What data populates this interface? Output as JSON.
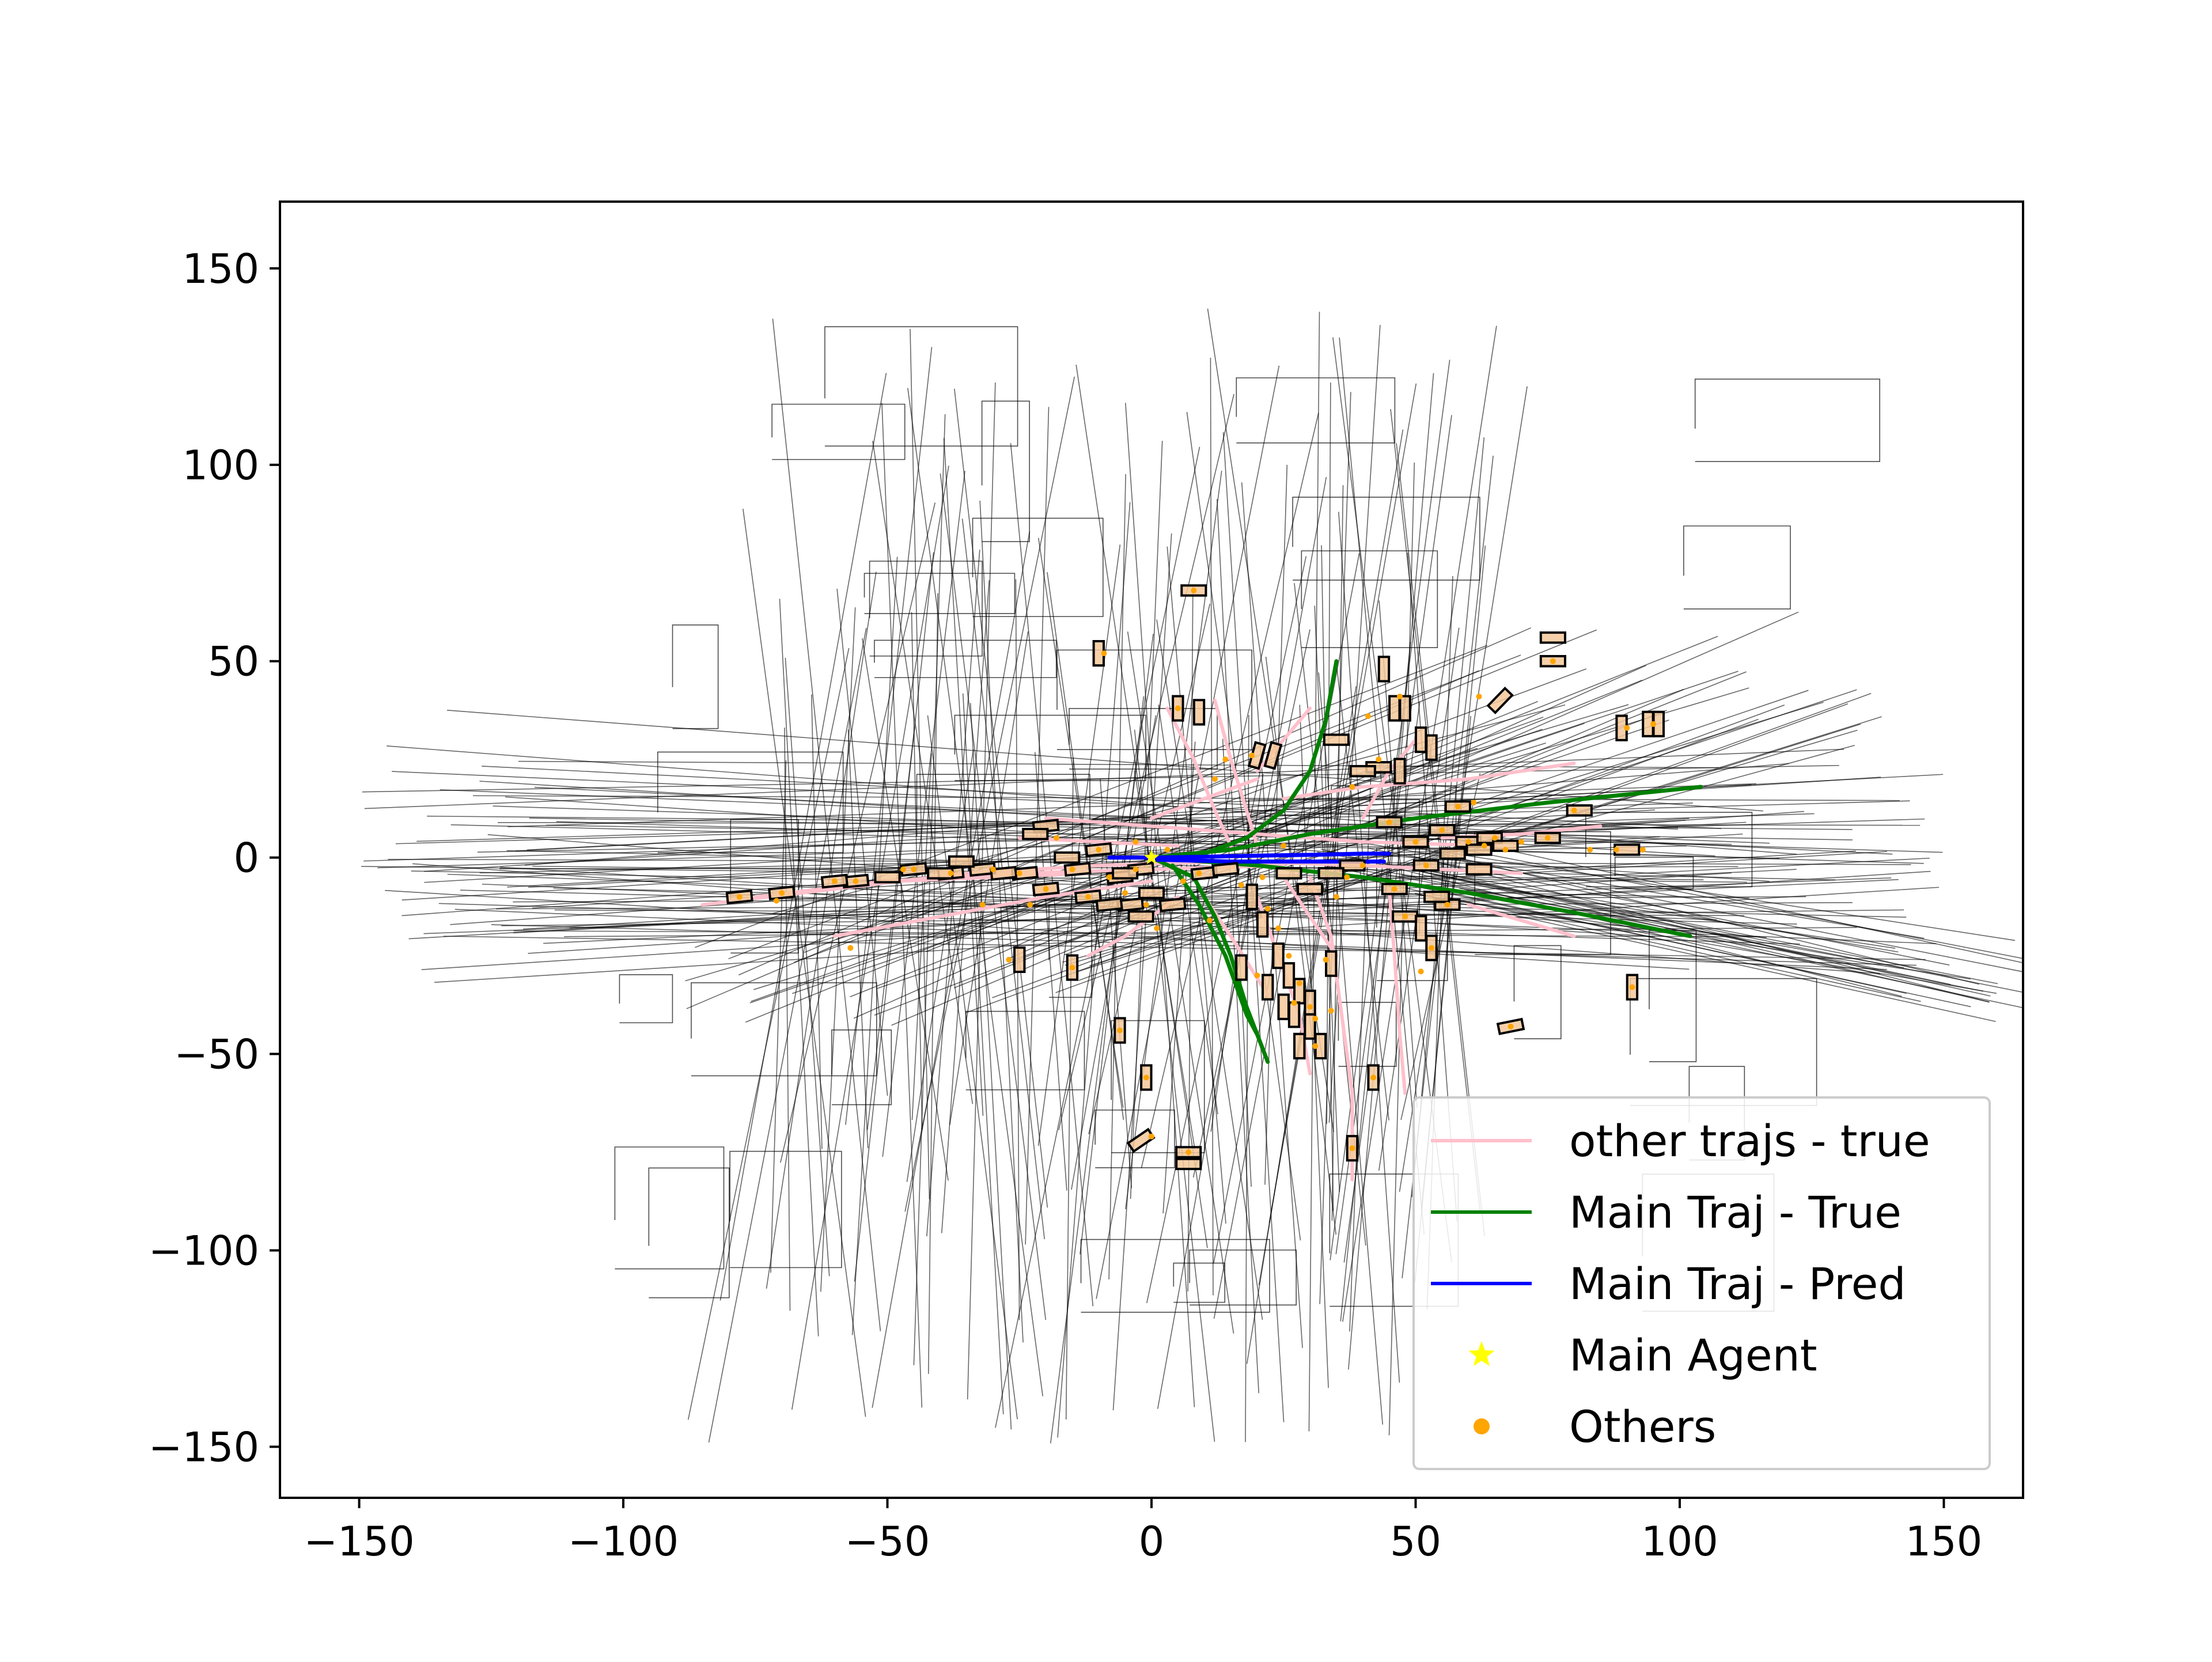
{
  "chart_data": {
    "type": "line",
    "title": "",
    "xlabel": "",
    "ylabel": "",
    "xlim": [
      -165,
      165
    ],
    "ylim": [
      -163,
      167
    ],
    "grid": false,
    "x_ticks": [
      -150,
      -100,
      -50,
      0,
      50,
      100,
      150
    ],
    "y_ticks": [
      -150,
      -100,
      -50,
      0,
      50,
      100,
      150
    ],
    "x_tick_labels": [
      "−150",
      "−100",
      "−50",
      "0",
      "50",
      "100",
      "150"
    ],
    "y_tick_labels": [
      "−150",
      "−100",
      "−50",
      "0",
      "50",
      "100",
      "150"
    ],
    "legend_placement": "lower right",
    "legend": [
      {
        "label": "other trajs - true",
        "color": "#ffc0cb",
        "marker": "line"
      },
      {
        "label": "Main Traj - True",
        "color": "#008000",
        "marker": "line"
      },
      {
        "label": "Main Traj - Pred",
        "color": "#0000ff",
        "marker": "line"
      },
      {
        "label": "Main Agent",
        "color": "#ffff00",
        "marker": "star"
      },
      {
        "label": "Others",
        "color": "#ffa500",
        "marker": "dot"
      }
    ],
    "series": [
      {
        "name": "Main Traj - True",
        "color": "#008000",
        "lines": [
          [
            [
              0,
              0
            ],
            [
              10,
              1
            ],
            [
              18,
              5
            ],
            [
              25,
              12
            ],
            [
              30,
              22
            ],
            [
              33,
              35
            ],
            [
              35,
              50
            ]
          ],
          [
            [
              0,
              0
            ],
            [
              15,
              2
            ],
            [
              30,
              6
            ],
            [
              50,
              10
            ],
            [
              75,
              14
            ],
            [
              104,
              18
            ]
          ],
          [
            [
              0,
              0
            ],
            [
              20,
              -2
            ],
            [
              40,
              -5
            ],
            [
              60,
              -9
            ],
            [
              80,
              -14
            ],
            [
              102,
              -20
            ]
          ],
          [
            [
              0,
              0
            ],
            [
              8,
              -5
            ],
            [
              12,
              -15
            ],
            [
              15,
              -25
            ],
            [
              18,
              -38
            ],
            [
              22,
              -52
            ]
          ],
          [
            [
              4,
              -2
            ],
            [
              9,
              -12
            ],
            [
              14,
              -25
            ],
            [
              18,
              -40
            ],
            [
              20,
              -45
            ]
          ]
        ]
      },
      {
        "name": "Main Traj - Pred",
        "color": "#0000ff",
        "lines": [
          [
            [
              -8,
              0
            ],
            [
              0,
              0
            ],
            [
              10,
              0.2
            ],
            [
              20,
              0.5
            ],
            [
              30,
              0.7
            ],
            [
              40,
              1
            ],
            [
              45,
              1
            ]
          ],
          [
            [
              0,
              -0.5
            ],
            [
              15,
              -1
            ],
            [
              30,
              -1
            ],
            [
              44,
              -1
            ]
          ]
        ]
      },
      {
        "name": "other trajs - true",
        "color": "#ffc0cb",
        "lines": [
          [
            [
              -85,
              -12
            ],
            [
              -60,
              -8
            ],
            [
              -35,
              -4
            ],
            [
              -10,
              -2
            ],
            [
              15,
              -1
            ],
            [
              40,
              -2
            ],
            [
              70,
              -4
            ]
          ],
          [
            [
              -75,
              -10
            ],
            [
              -50,
              -6
            ],
            [
              -25,
              -4
            ],
            [
              0,
              -3
            ],
            [
              25,
              -2
            ]
          ],
          [
            [
              -20,
              10
            ],
            [
              0,
              8
            ],
            [
              20,
              6
            ],
            [
              40,
              4
            ],
            [
              65,
              3
            ]
          ],
          [
            [
              -60,
              -20
            ],
            [
              -40,
              -15
            ],
            [
              -20,
              -10
            ],
            [
              0,
              -6
            ]
          ],
          [
            [
              3,
              38
            ],
            [
              8,
              25
            ],
            [
              12,
              12
            ],
            [
              15,
              3
            ]
          ],
          [
            [
              12,
              40
            ],
            [
              15,
              25
            ],
            [
              18,
              12
            ],
            [
              20,
              3
            ]
          ],
          [
            [
              20,
              -10
            ],
            [
              24,
              -25
            ],
            [
              28,
              -40
            ],
            [
              30,
              -55
            ]
          ],
          [
            [
              30,
              -5
            ],
            [
              34,
              -20
            ],
            [
              36,
              -40
            ],
            [
              38,
              -60
            ],
            [
              38,
              -82
            ]
          ],
          [
            [
              45,
              -8
            ],
            [
              46,
              -25
            ],
            [
              47,
              -45
            ],
            [
              48,
              -60
            ]
          ],
          [
            [
              25,
              15
            ],
            [
              40,
              18
            ],
            [
              60,
              20
            ],
            [
              80,
              24
            ]
          ],
          [
            [
              20,
              22
            ],
            [
              25,
              30
            ],
            [
              30,
              38
            ]
          ],
          [
            [
              -25,
              5
            ],
            [
              -10,
              4
            ],
            [
              5,
              3
            ]
          ],
          [
            [
              0,
              10
            ],
            [
              10,
              15
            ],
            [
              20,
              20
            ]
          ],
          [
            [
              10,
              -10
            ],
            [
              15,
              -20
            ],
            [
              22,
              -35
            ]
          ],
          [
            [
              35,
              -25
            ],
            [
              30,
              -15
            ],
            [
              25,
              -5
            ]
          ],
          [
            [
              55,
              5
            ],
            [
              70,
              6
            ],
            [
              85,
              8
            ]
          ],
          [
            [
              -12,
              -25
            ],
            [
              -5,
              -20
            ],
            [
              0,
              -15
            ],
            [
              5,
              -10
            ]
          ],
          [
            [
              40,
              10
            ],
            [
              45,
              22
            ],
            [
              50,
              30
            ]
          ],
          [
            [
              -48,
              -6
            ],
            [
              -30,
              -5
            ],
            [
              -12,
              -4
            ]
          ],
          [
            [
              60,
              -12
            ],
            [
              70,
              -16
            ],
            [
              80,
              -20
            ]
          ]
        ]
      }
    ],
    "main_agent": {
      "x": 0,
      "y": 0,
      "color": "#ffff00"
    },
    "others": [
      [
        -78,
        -10
      ],
      [
        -70,
        -9
      ],
      [
        -56,
        -6
      ],
      [
        -45,
        -3
      ],
      [
        -38,
        -4
      ],
      [
        -30,
        -3
      ],
      [
        -25,
        -4
      ],
      [
        -20,
        -8
      ],
      [
        -18,
        5
      ],
      [
        -15,
        -3
      ],
      [
        -12,
        -10
      ],
      [
        -10,
        2
      ],
      [
        -8,
        -5
      ],
      [
        -5,
        -9
      ],
      [
        -3,
        -3
      ],
      [
        -1,
        -12
      ],
      [
        -57,
        -23
      ],
      [
        -71,
        -11
      ],
      [
        -15,
        -28
      ],
      [
        -6,
        -44
      ],
      [
        -1,
        -56
      ],
      [
        0,
        -71
      ],
      [
        7,
        -75
      ],
      [
        5,
        38
      ],
      [
        9,
        -4
      ],
      [
        14,
        25
      ],
      [
        19,
        26
      ],
      [
        21,
        -5
      ],
      [
        22,
        -13
      ],
      [
        24,
        -18
      ],
      [
        26,
        -25
      ],
      [
        28,
        -32
      ],
      [
        30,
        -38
      ],
      [
        31,
        -48
      ],
      [
        33,
        -26
      ],
      [
        35,
        -10
      ],
      [
        37,
        -5
      ],
      [
        38,
        18
      ],
      [
        40,
        -2
      ],
      [
        41,
        36
      ],
      [
        43,
        25
      ],
      [
        45,
        9
      ],
      [
        46,
        -8
      ],
      [
        48,
        -15
      ],
      [
        50,
        4
      ],
      [
        52,
        -2
      ],
      [
        53,
        -23
      ],
      [
        55,
        7
      ],
      [
        56,
        -12
      ],
      [
        58,
        13
      ],
      [
        60,
        4
      ],
      [
        61,
        14
      ],
      [
        63,
        3
      ],
      [
        65,
        5
      ],
      [
        67,
        2
      ],
      [
        70,
        4
      ],
      [
        75,
        5
      ],
      [
        80,
        12
      ],
      [
        88,
        2
      ],
      [
        90,
        33
      ],
      [
        95,
        34
      ],
      [
        -9,
        52
      ],
      [
        8,
        68
      ],
      [
        38,
        -74
      ],
      [
        34,
        -39
      ],
      [
        20,
        -30
      ],
      [
        12,
        20
      ],
      [
        25,
        3
      ],
      [
        47,
        41
      ],
      [
        62,
        41
      ],
      [
        76,
        50
      ],
      [
        91,
        -33
      ],
      [
        68,
        -43
      ],
      [
        -47,
        -3
      ],
      [
        -60,
        -6
      ],
      [
        -32,
        -12
      ],
      [
        -27,
        -26
      ],
      [
        -23,
        -12
      ],
      [
        -3,
        4
      ],
      [
        3,
        2
      ],
      [
        17,
        -7
      ],
      [
        27,
        -37
      ],
      [
        31,
        -41
      ],
      [
        42,
        -56
      ],
      [
        51,
        -29
      ],
      [
        83,
        2
      ],
      [
        93,
        2
      ],
      [
        6,
        -6
      ],
      [
        11,
        -16
      ],
      [
        1,
        -18
      ]
    ],
    "vehicles": [
      [
        -78,
        -10,
        0.1
      ],
      [
        -70,
        -9,
        0.1
      ],
      [
        -56,
        -6,
        0.1
      ],
      [
        -45,
        -3,
        0.1
      ],
      [
        -38,
        -4,
        0.1
      ],
      [
        -32,
        -3,
        0.1
      ],
      [
        -24,
        -4,
        0.1
      ],
      [
        -20,
        -8,
        0.1
      ],
      [
        -20,
        8,
        0.1
      ],
      [
        -14,
        -3,
        0.1
      ],
      [
        -12,
        -10,
        0.1
      ],
      [
        -10,
        2,
        0.1
      ],
      [
        -6,
        -5,
        0.1
      ],
      [
        -4,
        -12,
        0.1
      ],
      [
        -2,
        -3,
        0.1
      ],
      [
        -25,
        -26,
        1.57
      ],
      [
        -20,
        -8,
        0.1
      ],
      [
        -15,
        -28,
        1.57
      ],
      [
        -6,
        -44,
        1.57
      ],
      [
        -1,
        -56,
        1.57
      ],
      [
        -2,
        -72,
        0.6
      ],
      [
        7,
        -75,
        0.0
      ],
      [
        7,
        -78,
        0.0
      ],
      [
        5,
        38,
        1.57
      ],
      [
        9,
        37,
        1.57
      ],
      [
        8,
        68,
        0.0
      ],
      [
        -10,
        52,
        1.57
      ],
      [
        20,
        26,
        1.3
      ],
      [
        23,
        26,
        1.3
      ],
      [
        19,
        -10,
        1.57
      ],
      [
        21,
        -17,
        1.57
      ],
      [
        24,
        -25,
        1.57
      ],
      [
        26,
        -30,
        1.57
      ],
      [
        28,
        -34,
        1.57
      ],
      [
        30,
        -37,
        1.57
      ],
      [
        32,
        -48,
        1.57
      ],
      [
        28,
        -48,
        1.57
      ],
      [
        34,
        -27,
        1.57
      ],
      [
        38,
        -74,
        1.57
      ],
      [
        42,
        -56,
        1.57
      ],
      [
        45,
        9,
        0.0
      ],
      [
        46,
        -8,
        0.0
      ],
      [
        48,
        -15,
        0.0
      ],
      [
        50,
        4,
        0.0
      ],
      [
        52,
        -2,
        0.0
      ],
      [
        53,
        -23,
        1.57
      ],
      [
        55,
        7,
        0.0
      ],
      [
        56,
        -12,
        0.0
      ],
      [
        58,
        13,
        0.0
      ],
      [
        60,
        4,
        0.0
      ],
      [
        62,
        2,
        0.0
      ],
      [
        64,
        5,
        0.0
      ],
      [
        67,
        3,
        0.0
      ],
      [
        75,
        5,
        0.0
      ],
      [
        81,
        12,
        0.0
      ],
      [
        90,
        2,
        0.0
      ],
      [
        89,
        33,
        1.57
      ],
      [
        94,
        34,
        1.57
      ],
      [
        96,
        34,
        1.57
      ],
      [
        76,
        50,
        0.0
      ],
      [
        76,
        56,
        0.0
      ],
      [
        66,
        40,
        0.8
      ],
      [
        44,
        48,
        1.57
      ],
      [
        46,
        38,
        1.57
      ],
      [
        48,
        38,
        1.57
      ],
      [
        51,
        30,
        1.57
      ],
      [
        53,
        28,
        1.57
      ],
      [
        43,
        23,
        0.0
      ],
      [
        40,
        22,
        0.0
      ],
      [
        47,
        22,
        1.57
      ],
      [
        91,
        -33,
        1.57
      ],
      [
        68,
        -43,
        0.2
      ],
      [
        35,
        30,
        0.0
      ],
      [
        -60,
        -6,
        0.1
      ],
      [
        -28,
        -4,
        0.1
      ],
      [
        -8,
        -12,
        0.1
      ],
      [
        4,
        -12,
        0.1
      ],
      [
        10,
        -4,
        0.1
      ],
      [
        14,
        -3,
        0.1
      ],
      [
        17,
        -28,
        1.57
      ],
      [
        22,
        -33,
        1.57
      ],
      [
        25,
        -38,
        1.57
      ],
      [
        27,
        -40,
        1.57
      ],
      [
        30,
        -43,
        1.57
      ],
      [
        51,
        -18,
        1.57
      ],
      [
        54,
        -10,
        0.0
      ],
      [
        62,
        -3,
        0.0
      ],
      [
        57,
        1,
        0.0
      ],
      [
        38,
        -2,
        0.0
      ],
      [
        34,
        -4,
        0.0
      ],
      [
        30,
        -8,
        0.0
      ],
      [
        26,
        -4,
        0.0
      ],
      [
        -36,
        -1,
        0.0
      ],
      [
        -40,
        -4,
        0.0
      ],
      [
        -50,
        -5,
        0.0
      ],
      [
        -16,
        0,
        0.0
      ],
      [
        -22,
        6,
        0.0
      ],
      [
        -5,
        -4,
        0.0
      ],
      [
        0,
        -9,
        0.0
      ],
      [
        -2,
        -15,
        0.0
      ]
    ]
  }
}
